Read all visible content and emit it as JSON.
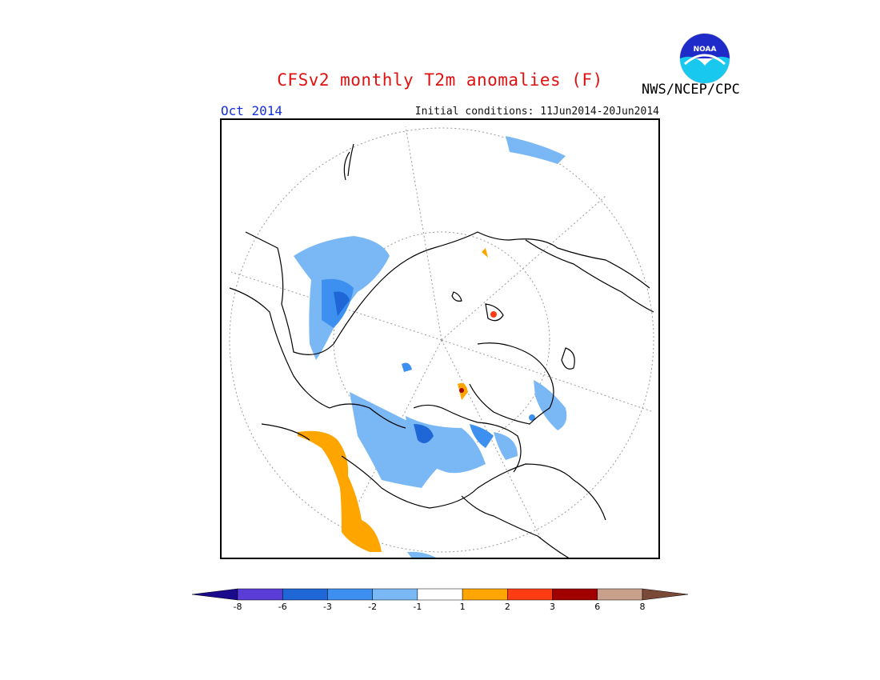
{
  "title": "CFSv2 monthly T2m anomalies (F)",
  "agency": "NWS/NCEP/CPC",
  "logo_text": "NOAA",
  "valid_month": "Oct 2014",
  "initial_conditions": "Initial conditions: 11Jun2014-20Jun2014",
  "colors": {
    "title": "#e01010",
    "month": "#1530d8",
    "coast": "#000000",
    "grid": "#9a9a9a"
  },
  "legend": {
    "bins": [
      {
        "color": "#1a0a8c"
      },
      {
        "color": "#5a3dd6"
      },
      {
        "color": "#1f66d6"
      },
      {
        "color": "#3d8ff0"
      },
      {
        "color": "#7ab8f5"
      },
      {
        "color": "#ffffff"
      },
      {
        "color": "#ffa500"
      },
      {
        "color": "#ff3c14"
      },
      {
        "color": "#a00000"
      },
      {
        "color": "#c8a08c"
      },
      {
        "color": "#7a4a38"
      }
    ],
    "labels": [
      "-8",
      "-6",
      "-3",
      "-2",
      "-1",
      "1",
      "2",
      "3",
      "6",
      "8"
    ]
  }
}
